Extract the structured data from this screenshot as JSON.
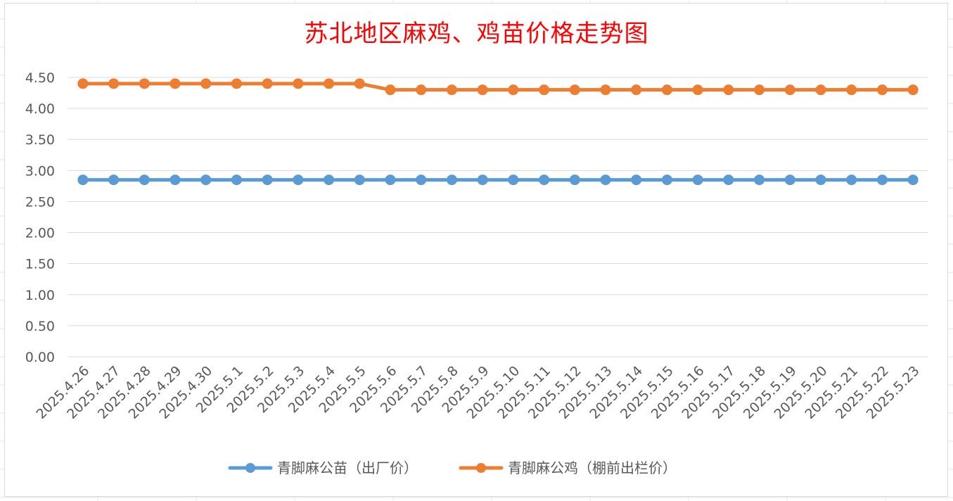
{
  "chart_data": {
    "type": "line",
    "title": "苏北地区麻鸡、鸡苗价格走势图",
    "xlabel": "",
    "ylabel": "",
    "ylim": [
      0,
      4.5
    ],
    "yticks": [
      "0.00",
      "0.50",
      "1.00",
      "1.50",
      "2.00",
      "2.50",
      "3.00",
      "3.50",
      "4.00",
      "4.50"
    ],
    "grid": true,
    "legend_position": "bottom",
    "categories": [
      "2025.4.26",
      "2025.4.27",
      "2025.4.28",
      "2025.4.29",
      "2025.4.30",
      "2025.5.1",
      "2025.5.2",
      "2025.5.3",
      "2025.5.4",
      "2025.5.5",
      "2025.5.6",
      "2025.5.7",
      "2025.5.8",
      "2025.5.9",
      "2025.5.10",
      "2025.5.11",
      "2025.5.12",
      "2025.5.13",
      "2025.5.14",
      "2025.5.15",
      "2025.5.16",
      "2025.5.17",
      "2025.5.18",
      "2025.5.19",
      "2025.5.20",
      "2025.5.21",
      "2025.5.22",
      "2025.5.23"
    ],
    "series": [
      {
        "name": "青脚麻公苗（出厂价）",
        "color": "#5b9bd5",
        "values": [
          2.85,
          2.85,
          2.85,
          2.85,
          2.85,
          2.85,
          2.85,
          2.85,
          2.85,
          2.85,
          2.85,
          2.85,
          2.85,
          2.85,
          2.85,
          2.85,
          2.85,
          2.85,
          2.85,
          2.85,
          2.85,
          2.85,
          2.85,
          2.85,
          2.85,
          2.85,
          2.85,
          2.85
        ]
      },
      {
        "name": "青脚麻公鸡（棚前出栏价）",
        "color": "#ed7d31",
        "values": [
          4.4,
          4.4,
          4.4,
          4.4,
          4.4,
          4.4,
          4.4,
          4.4,
          4.4,
          4.4,
          4.3,
          4.3,
          4.3,
          4.3,
          4.3,
          4.3,
          4.3,
          4.3,
          4.3,
          4.3,
          4.3,
          4.3,
          4.3,
          4.3,
          4.3,
          4.3,
          4.3,
          4.3
        ]
      }
    ]
  }
}
